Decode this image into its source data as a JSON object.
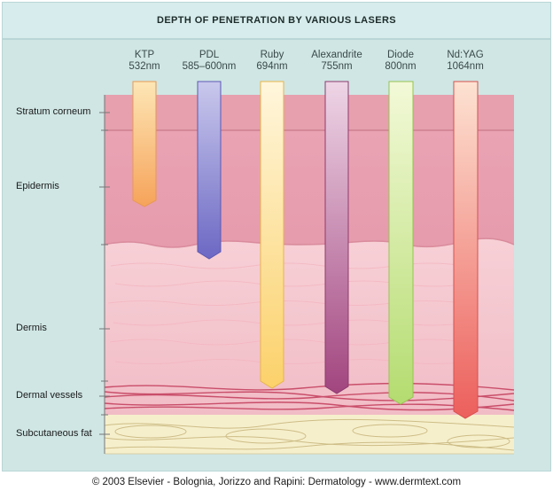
{
  "title": "DEPTH OF PENETRATION BY VARIOUS LASERS",
  "lasers": [
    {
      "name": "KTP",
      "wavelength": "532nm"
    },
    {
      "name": "PDL",
      "wavelength": "585–600nm"
    },
    {
      "name": "Ruby",
      "wavelength": "694nm"
    },
    {
      "name": "Alexandrite",
      "wavelength": "755nm"
    },
    {
      "name": "Diode",
      "wavelength": "800nm"
    },
    {
      "name": "Nd:YAG",
      "wavelength": "1064nm"
    }
  ],
  "layers": [
    {
      "label": "Stratum corneum"
    },
    {
      "label": "Epidermis"
    },
    {
      "label": "Dermis"
    },
    {
      "label": "Dermal vessels"
    },
    {
      "label": "Subcutaneous fat"
    }
  ],
  "copyright": "© 2003 Elsevier - Bolognia, Jorizzo and Rapini: Dermatology - www.dermtext.com"
}
